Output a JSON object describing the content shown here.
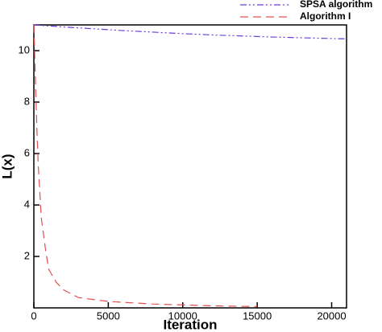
{
  "chart_data": {
    "type": "line",
    "x_label": "Iteration",
    "y_label": "L(x)",
    "xlim": [
      0,
      21000
    ],
    "xticks": [
      0,
      5000,
      10000,
      15000,
      20000
    ],
    "ylim": [
      0,
      11
    ],
    "yticks": [
      2,
      4,
      6,
      8,
      10
    ],
    "legend": "top-right",
    "series": [
      {
        "name": "SPSA algorithm",
        "color": "#6a3cd8",
        "dash": "dashdotdot",
        "x": [
          0,
          1000,
          2000,
          4000,
          6000,
          8000,
          10000,
          12000,
          14000,
          16000,
          18000,
          20000,
          21000
        ],
        "values": [
          11,
          10.96,
          10.92,
          10.85,
          10.78,
          10.72,
          10.66,
          10.61,
          10.57,
          10.53,
          10.5,
          10.47,
          10.46
        ]
      },
      {
        "name": "Algorithm I",
        "color": "#e05050",
        "dash": "dash",
        "x": [
          0,
          100,
          200,
          300,
          500,
          800,
          1000,
          1500,
          2000,
          3000,
          5000,
          8000,
          12000,
          15000
        ],
        "values": [
          11,
          9,
          7,
          5.5,
          3.5,
          2.2,
          1.5,
          1.0,
          0.7,
          0.4,
          0.25,
          0.15,
          0.08,
          0.05
        ]
      }
    ]
  }
}
